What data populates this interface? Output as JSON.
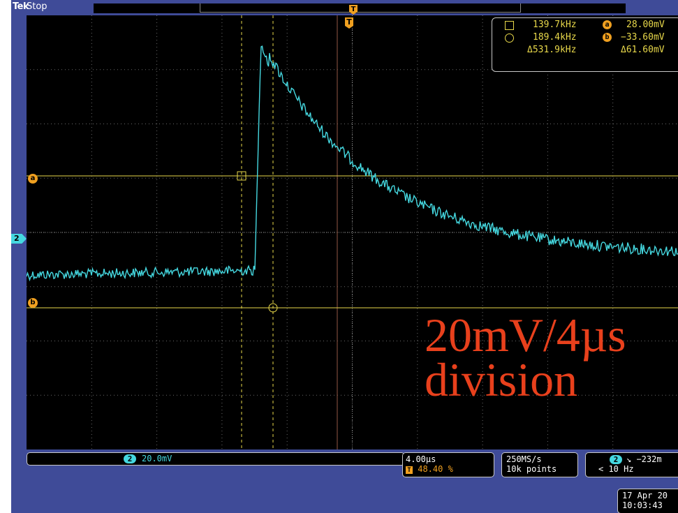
{
  "header": {
    "logo": "Tek",
    "acquisition_state": "Stop",
    "trigger_position_marker": "T",
    "trigger_marker": "T"
  },
  "readout": {
    "cursor1_frequency": "139.7kHz",
    "cursor2_frequency": "189.4kHz",
    "delta_frequency": "Δ531.9kHz",
    "cursor_a_label": "a",
    "cursor_b_label": "b",
    "cursor_a_value": "28.00mV",
    "cursor_b_value": "−33.60mV",
    "delta_voltage": "Δ61.60mV"
  },
  "annotation": {
    "line1": "20mV/4µs",
    "line2": "division"
  },
  "channel_marker": {
    "label": "2"
  },
  "status": {
    "ch2_badge": "2",
    "ch2_scale": "20.0mV",
    "timebase": "4.00µs",
    "trigger_position_badge": "T",
    "trigger_position": "48.40 %",
    "sample_rate": "250MS/s",
    "record_length": "10k points",
    "trigger_source_badge": "2",
    "trigger_level": "↘ −232m",
    "trigger_frequency": "< 10 Hz",
    "date": "17 Apr 20",
    "time": "10:03:43"
  },
  "colors": {
    "background": "#3f4b98",
    "trace": "#45d8e0",
    "cursor": "#e8d84a",
    "accent": "#f0a020",
    "annotation": "#e8401c"
  }
}
